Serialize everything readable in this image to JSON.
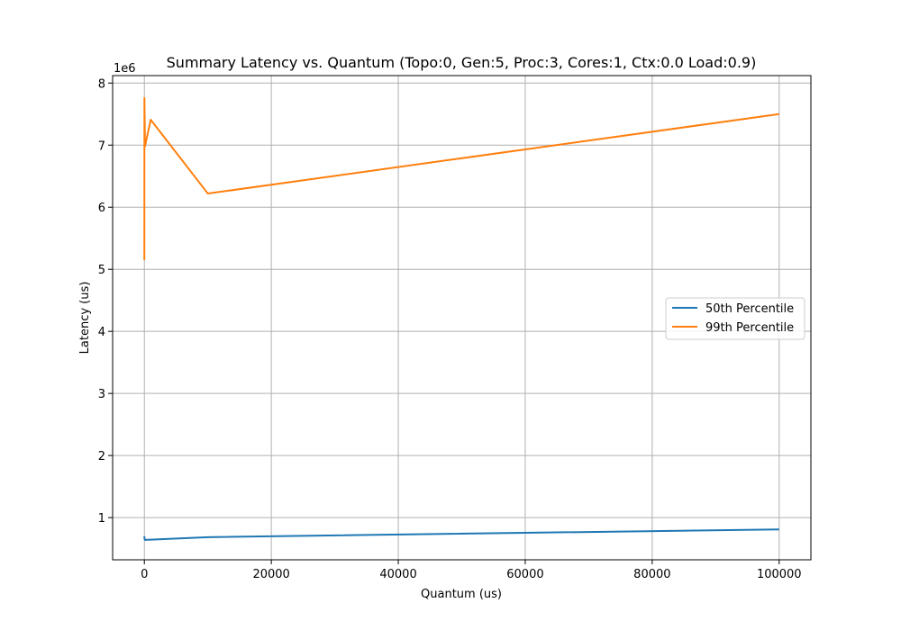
{
  "chart_data": {
    "type": "line",
    "title": "Summary Latency vs. Quantum (Topo:0, Gen:5, Proc:3, Cores:1, Ctx:0.0 Load:0.9)",
    "xlabel": "Quantum (us)",
    "ylabel": "Latency (us)",
    "y_offset_label": "1e6",
    "xlim": [
      -5000,
      105000
    ],
    "ylim": [
      0.32,
      8.12
    ],
    "xticks": [
      0,
      20000,
      40000,
      60000,
      80000,
      100000
    ],
    "xtick_labels": [
      "0",
      "20000",
      "40000",
      "60000",
      "80000",
      "100000"
    ],
    "yticks": [
      1,
      2,
      3,
      4,
      5,
      6,
      7,
      8
    ],
    "ytick_labels": [
      "1",
      "2",
      "3",
      "4",
      "5",
      "6",
      "7",
      "8"
    ],
    "grid": true,
    "legend_position": "center-right",
    "series": [
      {
        "name": "50th Percentile",
        "color": "#1f77b4",
        "x": [
          1,
          10,
          100,
          1000,
          10000,
          100000
        ],
        "y": [
          0.7,
          0.67,
          0.64,
          0.645,
          0.685,
          0.81
        ]
      },
      {
        "name": "99th Percentile",
        "color": "#ff7f0e",
        "x": [
          1,
          10,
          100,
          1000,
          10000,
          100000
        ],
        "y": [
          5.15,
          7.76,
          6.98,
          7.41,
          6.22,
          7.5
        ]
      }
    ]
  }
}
